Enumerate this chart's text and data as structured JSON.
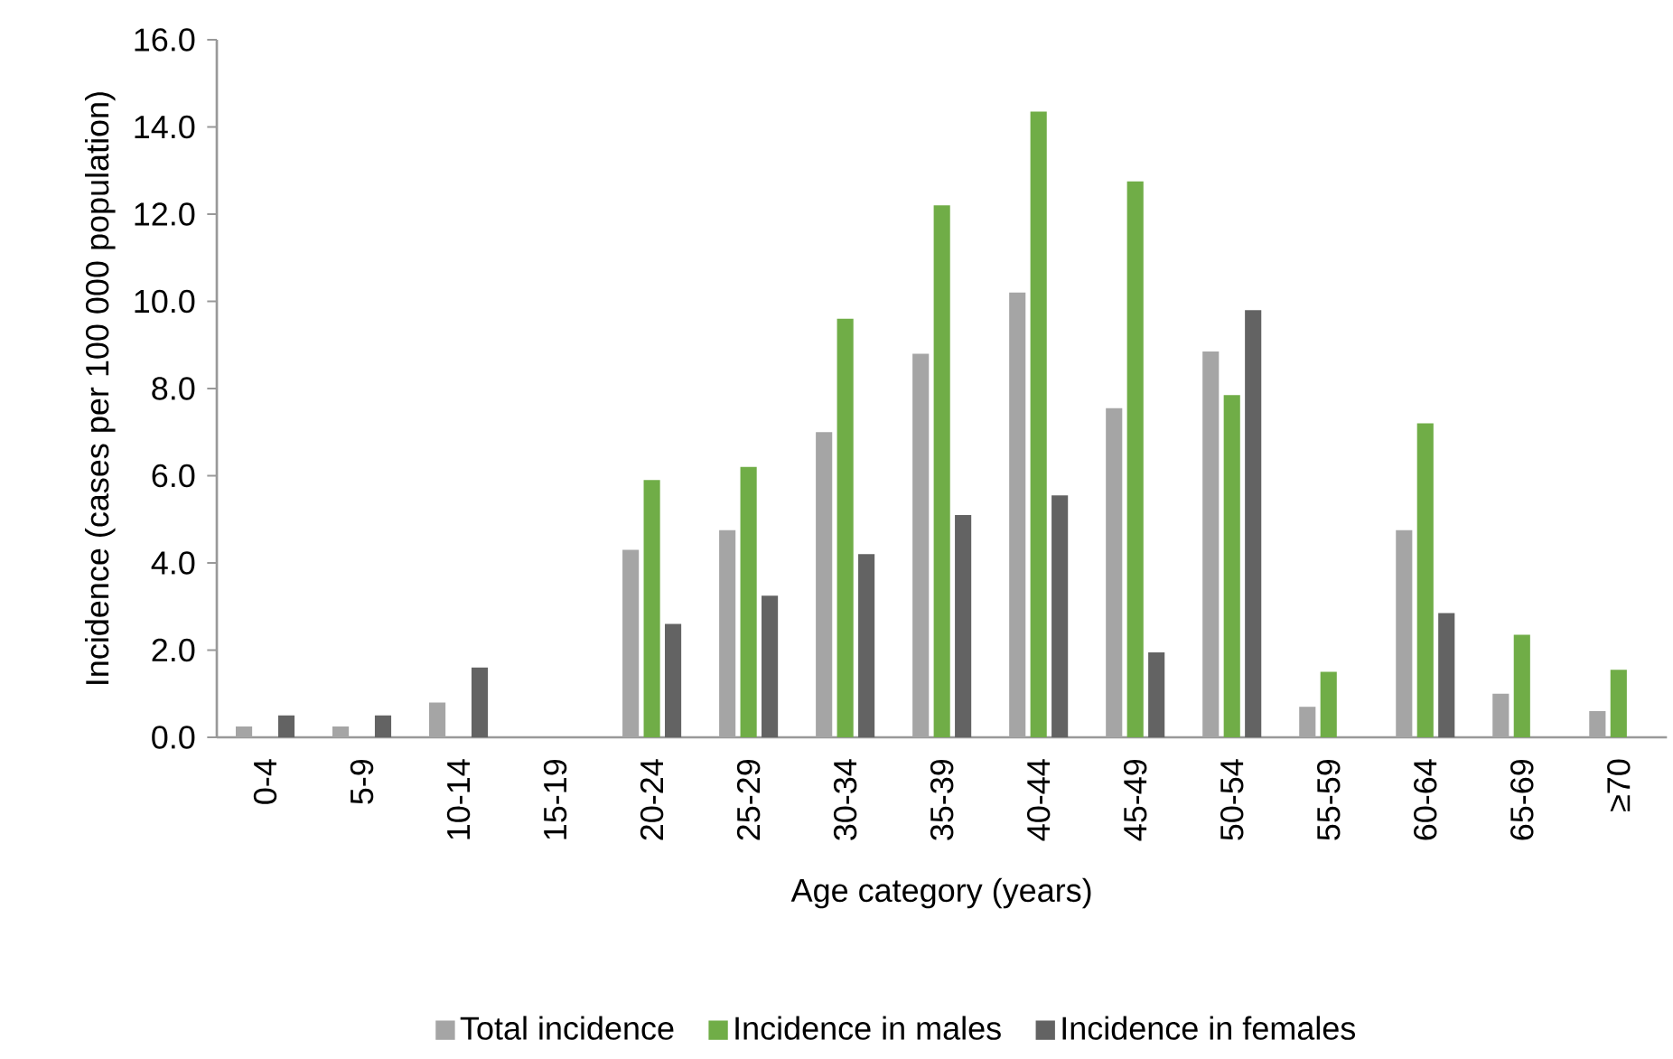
{
  "chart_data": {
    "type": "bar",
    "xlabel": "Age category (years)",
    "ylabel": "Incidence (cases per 100 000 population)",
    "categories": [
      "0-4",
      "5-9",
      "10-14",
      "15-19",
      "20-24",
      "25-29",
      "30-34",
      "35-39",
      "40-44",
      "45-49",
      "50-54",
      "55-59",
      "60-64",
      "65-69",
      "≥70"
    ],
    "series": [
      {
        "name": "Total incidence",
        "color": "#a5a5a5",
        "values": [
          0.25,
          0.25,
          0.8,
          0,
          4.3,
          4.75,
          7.0,
          8.8,
          10.2,
          7.55,
          8.85,
          0.7,
          4.75,
          1.0,
          0.6
        ]
      },
      {
        "name": "Incidence in males",
        "color": "#70ad47",
        "values": [
          0,
          0,
          0,
          0,
          5.9,
          6.2,
          9.6,
          12.2,
          14.35,
          12.75,
          7.85,
          1.5,
          7.2,
          2.35,
          1.55
        ]
      },
      {
        "name": "Incidence in females",
        "color": "#636363",
        "values": [
          0.5,
          0.5,
          1.6,
          0,
          2.6,
          3.25,
          4.2,
          5.1,
          5.55,
          1.95,
          9.8,
          0,
          2.85,
          0,
          0
        ]
      }
    ],
    "ylim": [
      0,
      16
    ],
    "yticks": [
      {
        "value": 0,
        "label": "0.0"
      },
      {
        "value": 2,
        "label": "2.0"
      },
      {
        "value": 4,
        "label": "4.0"
      },
      {
        "value": 6,
        "label": "6.0"
      },
      {
        "value": 8,
        "label": "8.0"
      },
      {
        "value": 10,
        "label": "10.0"
      },
      {
        "value": 12,
        "label": "12.0"
      },
      {
        "value": 14,
        "label": "14.0"
      },
      {
        "value": 16,
        "label": "16.0"
      }
    ],
    "grid": false,
    "legend": "bottom"
  }
}
